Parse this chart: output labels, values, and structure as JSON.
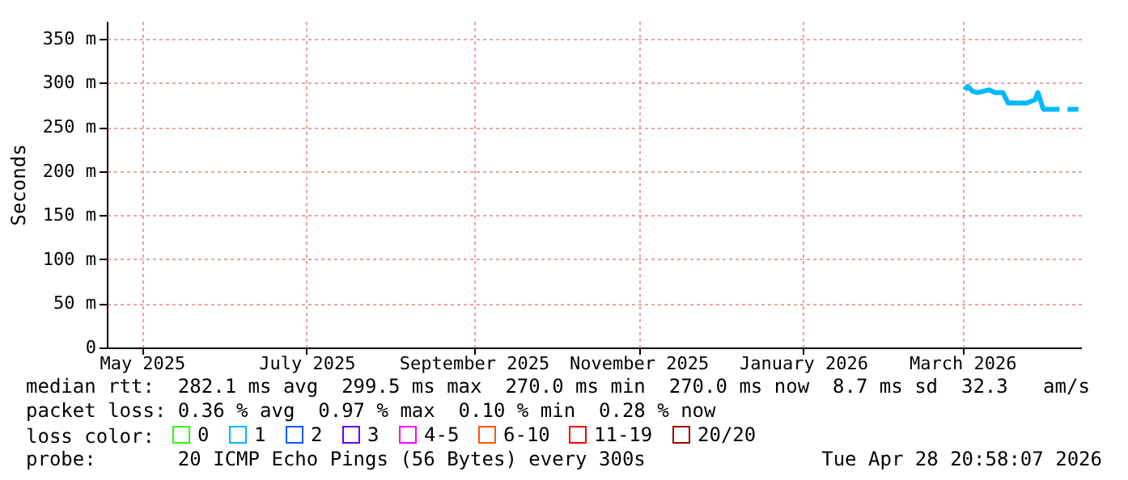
{
  "chart_data": {
    "type": "line",
    "ylabel": "Seconds",
    "legend_title": "loss color:",
    "legend": "bottom",
    "grid": true,
    "x": [
      "2026-03-02",
      "2026-03-03",
      "2026-03-05",
      "2026-03-07",
      "2026-03-11",
      "2026-03-13",
      "2026-03-16",
      "2026-03-18",
      "2026-03-22",
      "2026-03-25",
      "2026-03-28",
      "2026-03-29",
      "2026-03-31",
      "2026-04-06",
      "2026-04-07",
      "2026-04-09",
      "2026-04-13"
    ],
    "series": [
      {
        "name": "0",
        "color": "#26ff00",
        "values": [
          null,
          null,
          null,
          null,
          null,
          null,
          null,
          null,
          null,
          null,
          null,
          null,
          null,
          null,
          null,
          null,
          null
        ]
      },
      {
        "name": "1",
        "color": "#00b8ff",
        "values": [
          292,
          296,
          290,
          289,
          292,
          289,
          289,
          277,
          277,
          277,
          281,
          289,
          270,
          270,
          null,
          270,
          270
        ]
      },
      {
        "name": "2",
        "color": "#0059ff",
        "values": [
          null,
          null,
          null,
          null,
          null,
          null,
          null,
          null,
          null,
          null,
          null,
          null,
          null,
          null,
          null,
          null,
          null
        ]
      },
      {
        "name": "3",
        "color": "#5e00ff",
        "values": [
          null,
          null,
          null,
          null,
          null,
          null,
          null,
          null,
          null,
          null,
          null,
          null,
          null,
          null,
          null,
          null,
          null
        ]
      },
      {
        "name": "4-5",
        "color": "#ff00ff",
        "values": [
          null,
          null,
          null,
          null,
          null,
          null,
          null,
          null,
          null,
          null,
          null,
          null,
          null,
          null,
          null,
          null,
          null
        ]
      },
      {
        "name": "6-10",
        "color": "#ff5500",
        "values": [
          null,
          null,
          null,
          null,
          null,
          null,
          null,
          null,
          null,
          null,
          null,
          null,
          null,
          null,
          null,
          null,
          null
        ]
      },
      {
        "name": "11-19",
        "color": "#ff0000",
        "values": [
          null,
          null,
          null,
          null,
          null,
          null,
          null,
          null,
          null,
          null,
          null,
          null,
          null,
          null,
          null,
          null,
          null
        ]
      },
      {
        "name": "20/20",
        "color": "#a10000",
        "values": [
          null,
          null,
          null,
          null,
          null,
          null,
          null,
          null,
          null,
          null,
          null,
          null,
          null,
          null,
          null,
          null,
          null
        ]
      }
    ],
    "xlim": [
      "2025-04-18",
      "2026-04-14"
    ],
    "xticks": [
      {
        "value": "2025-05-01",
        "label": "May 2025"
      },
      {
        "value": "2025-07-01",
        "label": "July 2025"
      },
      {
        "value": "2025-09-01",
        "label": "September 2025"
      },
      {
        "value": "2025-11-01",
        "label": "November 2025"
      },
      {
        "value": "2026-01-01",
        "label": "January 2026"
      },
      {
        "value": "2026-03-01",
        "label": "March 2026"
      }
    ],
    "ylim": [
      0,
      370
    ],
    "yticks": [
      0,
      {
        "value": 50,
        "label": "50 m"
      },
      {
        "value": 100,
        "label": "100 m"
      },
      {
        "value": 150,
        "label": "150 m"
      },
      {
        "value": 200,
        "label": "200 m"
      },
      {
        "value": 250,
        "label": "250 m"
      },
      {
        "value": 300,
        "label": "300 m"
      },
      {
        "value": 350,
        "label": "350 m"
      }
    ],
    "annotations": [
      "median rtt:  282.1 ms avg  299.5 ms max  270.0 ms min  270.0 ms now  8.7 ms sd  32.3   am/s",
      "packet loss: 0.36 % avg  0.97 % max  0.10 % min  0.28 % now",
      "probe:       20 ICMP Echo Pings (56 Bytes) every 300s",
      "Tue Apr 28 20:58:07 2026"
    ]
  }
}
